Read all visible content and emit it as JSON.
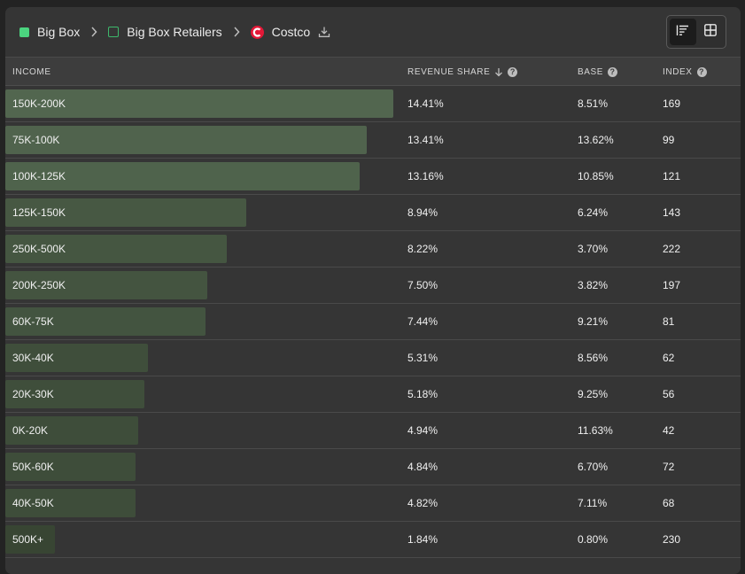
{
  "breadcrumb": {
    "items": [
      {
        "label": "Big Box",
        "marker": "filled-square-icon",
        "color": "#4bd47f"
      },
      {
        "label": "Big Box Retailers",
        "marker": "outline-square-icon",
        "color": "#3db86b"
      },
      {
        "label": "Costco",
        "marker": "costco-logo-icon",
        "color": "#e31837"
      }
    ],
    "separator_icon": "chevron-right-icon",
    "download_icon": "download-icon"
  },
  "view_toggle": {
    "options": [
      {
        "icon": "bar-list-icon",
        "active": true
      },
      {
        "icon": "grid-icon",
        "active": false
      }
    ]
  },
  "table": {
    "columns": {
      "income": "INCOME",
      "revenue_share": "REVENUE SHARE",
      "base": "BASE",
      "index": "INDEX"
    },
    "sort_icon": "arrow-down-icon",
    "info_icon": "help-circle-icon",
    "max_share": 14.41,
    "rows": [
      {
        "income": "150K-200K",
        "revenue_share": "14.41%",
        "share_value": 14.41,
        "base": "8.51%",
        "index": "169"
      },
      {
        "income": "75K-100K",
        "revenue_share": "13.41%",
        "share_value": 13.41,
        "base": "13.62%",
        "index": "99"
      },
      {
        "income": "100K-125K",
        "revenue_share": "13.16%",
        "share_value": 13.16,
        "base": "10.85%",
        "index": "121"
      },
      {
        "income": "125K-150K",
        "revenue_share": "8.94%",
        "share_value": 8.94,
        "base": "6.24%",
        "index": "143"
      },
      {
        "income": "250K-500K",
        "revenue_share": "8.22%",
        "share_value": 8.22,
        "base": "3.70%",
        "index": "222"
      },
      {
        "income": "200K-250K",
        "revenue_share": "7.50%",
        "share_value": 7.5,
        "base": "3.82%",
        "index": "197"
      },
      {
        "income": "60K-75K",
        "revenue_share": "7.44%",
        "share_value": 7.44,
        "base": "9.21%",
        "index": "81"
      },
      {
        "income": "30K-40K",
        "revenue_share": "5.31%",
        "share_value": 5.31,
        "base": "8.56%",
        "index": "62"
      },
      {
        "income": "20K-30K",
        "revenue_share": "5.18%",
        "share_value": 5.18,
        "base": "9.25%",
        "index": "56"
      },
      {
        "income": "0K-20K",
        "revenue_share": "4.94%",
        "share_value": 4.94,
        "base": "11.63%",
        "index": "42"
      },
      {
        "income": "50K-60K",
        "revenue_share": "4.84%",
        "share_value": 4.84,
        "base": "6.70%",
        "index": "72"
      },
      {
        "income": "40K-50K",
        "revenue_share": "4.82%",
        "share_value": 4.82,
        "base": "7.11%",
        "index": "68"
      },
      {
        "income": "500K+",
        "revenue_share": "1.84%",
        "share_value": 1.84,
        "base": "0.80%",
        "index": "230"
      }
    ]
  },
  "colors": {
    "bar_bright": "#52664f",
    "bar_dim": "#34402f",
    "panel": "#353535"
  }
}
